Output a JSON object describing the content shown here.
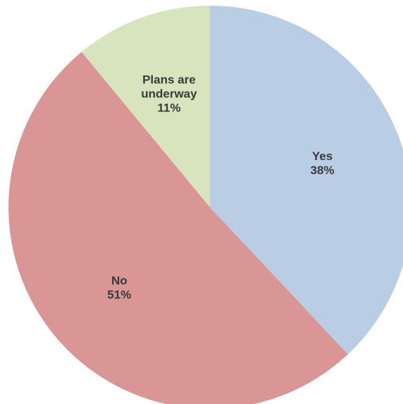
{
  "chart_data": {
    "type": "pie",
    "slices": [
      {
        "label_lines": [
          "Yes"
        ],
        "value": 38,
        "value_label": "38%",
        "color": "#b9cde5"
      },
      {
        "label_lines": [
          "No"
        ],
        "value": 51,
        "value_label": "51%",
        "color": "#d99694"
      },
      {
        "label_lines": [
          "Plans are",
          "underway"
        ],
        "value": 11,
        "value_label": "11%",
        "color": "#d7e4bd"
      }
    ],
    "start_position": "top",
    "direction": "clockwise",
    "legend": "none"
  }
}
